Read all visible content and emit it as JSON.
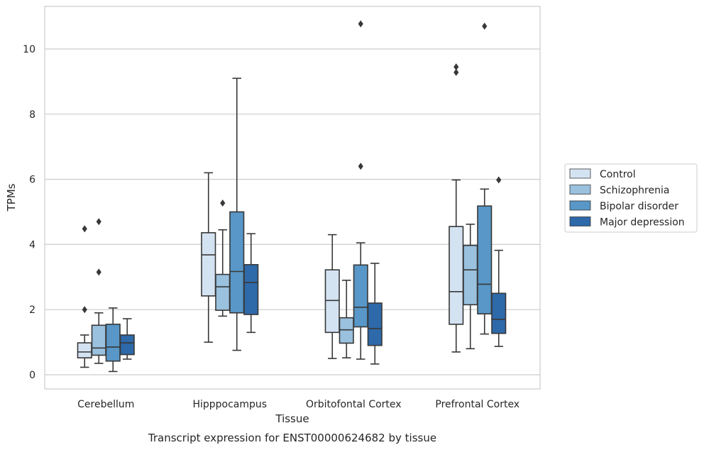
{
  "chart_data": {
    "type": "box",
    "caption": "Transcript expression for ENST00000624682 by tissue",
    "xlabel": "Tissue",
    "ylabel": "TPMs",
    "ylim": [
      -0.4,
      11.3
    ],
    "yticks": [
      0,
      2,
      4,
      6,
      8,
      10
    ],
    "grid": "horizontal",
    "legend_position": "right",
    "categories": [
      "Cerebellum",
      "Hipppocampus",
      "Orbitofontal Cortex",
      "Prefrontal Cortex"
    ],
    "series": [
      {
        "name": "Control",
        "color": "#d4e3f2",
        "boxes": [
          {
            "whisker_low": 0.23,
            "q1": 0.52,
            "median": 0.7,
            "q3": 0.98,
            "whisker_high": 1.22,
            "outliers": [
              2.0,
              4.48
            ]
          },
          {
            "whisker_low": 1.0,
            "q1": 2.42,
            "median": 3.68,
            "q3": 4.36,
            "whisker_high": 6.2,
            "outliers": []
          },
          {
            "whisker_low": 0.5,
            "q1": 1.3,
            "median": 2.28,
            "q3": 3.22,
            "whisker_high": 4.3,
            "outliers": []
          },
          {
            "whisker_low": 0.7,
            "q1": 1.55,
            "median": 2.55,
            "q3": 4.55,
            "whisker_high": 5.98,
            "outliers": [
              9.28,
              9.45
            ]
          }
        ]
      },
      {
        "name": "Schizophrenia",
        "color": "#9ac1de",
        "boxes": [
          {
            "whisker_low": 0.35,
            "q1": 0.6,
            "median": 0.82,
            "q3": 1.52,
            "whisker_high": 1.9,
            "outliers": [
              4.7,
              3.15
            ]
          },
          {
            "whisker_low": 1.8,
            "q1": 1.98,
            "median": 2.7,
            "q3": 3.08,
            "whisker_high": 4.45,
            "outliers": [
              5.27
            ]
          },
          {
            "whisker_low": 0.52,
            "q1": 0.97,
            "median": 1.38,
            "q3": 1.75,
            "whisker_high": 2.9,
            "outliers": []
          },
          {
            "whisker_low": 0.8,
            "q1": 2.15,
            "median": 3.22,
            "q3": 3.97,
            "whisker_high": 4.62,
            "outliers": []
          }
        ]
      },
      {
        "name": "Bipolar disorder",
        "color": "#5897c7",
        "boxes": [
          {
            "whisker_low": 0.1,
            "q1": 0.42,
            "median": 0.85,
            "q3": 1.55,
            "whisker_high": 2.05,
            "outliers": []
          },
          {
            "whisker_low": 0.75,
            "q1": 1.9,
            "median": 3.17,
            "q3": 5.0,
            "whisker_high": 9.1,
            "outliers": []
          },
          {
            "whisker_low": 0.48,
            "q1": 1.47,
            "median": 2.07,
            "q3": 3.37,
            "whisker_high": 4.05,
            "outliers": [
              6.4,
              10.77
            ]
          },
          {
            "whisker_low": 1.25,
            "q1": 1.87,
            "median": 2.78,
            "q3": 5.18,
            "whisker_high": 5.7,
            "outliers": [
              10.7
            ]
          }
        ]
      },
      {
        "name": "Major depression",
        "color": "#2e69a9",
        "boxes": [
          {
            "whisker_low": 0.48,
            "q1": 0.62,
            "median": 0.98,
            "q3": 1.22,
            "whisker_high": 1.72,
            "outliers": []
          },
          {
            "whisker_low": 1.3,
            "q1": 1.85,
            "median": 2.83,
            "q3": 3.38,
            "whisker_high": 4.33,
            "outliers": []
          },
          {
            "whisker_low": 0.33,
            "q1": 0.9,
            "median": 1.42,
            "q3": 2.2,
            "whisker_high": 3.42,
            "outliers": []
          },
          {
            "whisker_low": 0.87,
            "q1": 1.27,
            "median": 1.7,
            "q3": 2.5,
            "whisker_high": 3.82,
            "outliers": [
              5.98
            ]
          }
        ]
      }
    ]
  },
  "colors": {
    "box_edge": "#383838",
    "grid": "#cccccc",
    "frame": "#cccccc",
    "text": "#262626"
  }
}
